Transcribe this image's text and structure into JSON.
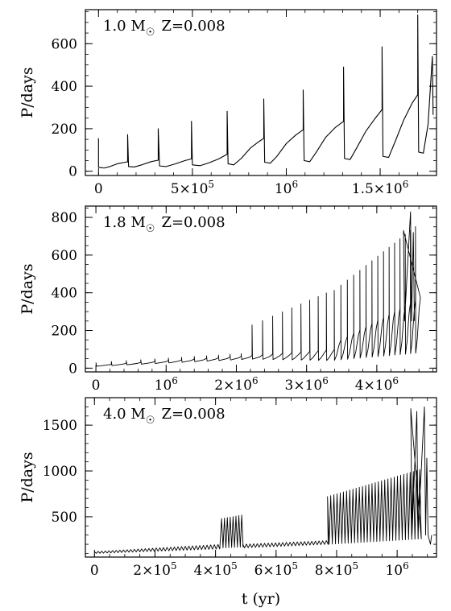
{
  "chart_data": [
    {
      "type": "line",
      "label_prefix": "1.0 M",
      "label_suffix": "Z=0.008",
      "ylabel": "P/days",
      "xlim": [
        -70000,
        1800000
      ],
      "ylim": [
        -20,
        760
      ],
      "xtick_labels": [
        {
          "x": 0,
          "mant": "0",
          "exp": ""
        },
        {
          "x": 500000,
          "mant": "5×10",
          "exp": "5"
        },
        {
          "x": 1000000,
          "mant": "10",
          "exp": "6"
        },
        {
          "x": 1500000,
          "mant": "1.5×10",
          "exp": "6"
        }
      ],
      "xminor": 100000,
      "ytick_labels": [
        {
          "y": 0,
          "text": "0"
        },
        {
          "y": 200,
          "text": "200"
        },
        {
          "y": 400,
          "text": "400"
        },
        {
          "y": 600,
          "text": "600"
        }
      ],
      "yminor": 50,
      "series": [
        {
          "values": [
            [
              0,
              155
            ],
            [
              0,
              18
            ],
            [
              30000,
              15
            ],
            [
              60000,
              22
            ],
            [
              100000,
              35
            ],
            [
              140000,
              42
            ],
            [
              155000,
              44
            ],
            [
              155000,
              172
            ],
            [
              160000,
              22
            ],
            [
              190000,
              20
            ],
            [
              230000,
              30
            ],
            [
              280000,
              45
            ],
            [
              318000,
              52
            ],
            [
              318000,
              200
            ],
            [
              325000,
              25
            ],
            [
              360000,
              22
            ],
            [
              410000,
              35
            ],
            [
              460000,
              50
            ],
            [
              495000,
              58
            ],
            [
              495000,
              235
            ],
            [
              500000,
              30
            ],
            [
              540000,
              26
            ],
            [
              590000,
              40
            ],
            [
              640000,
              58
            ],
            [
              685000,
              80
            ],
            [
              685000,
              282
            ],
            [
              690000,
              35
            ],
            [
              720000,
              30
            ],
            [
              760000,
              60
            ],
            [
              810000,
              110
            ],
            [
              855000,
              140
            ],
            [
              880000,
              155
            ],
            [
              880000,
              340
            ],
            [
              885000,
              42
            ],
            [
              915000,
              38
            ],
            [
              950000,
              70
            ],
            [
              1000000,
              130
            ],
            [
              1050000,
              170
            ],
            [
              1090000,
              195
            ],
            [
              1090000,
              382
            ],
            [
              1095000,
              50
            ],
            [
              1125000,
              45
            ],
            [
              1160000,
              90
            ],
            [
              1210000,
              160
            ],
            [
              1260000,
              205
            ],
            [
              1305000,
              235
            ],
            [
              1305000,
              490
            ],
            [
              1310000,
              60
            ],
            [
              1340000,
              55
            ],
            [
              1375000,
              110
            ],
            [
              1425000,
              190
            ],
            [
              1470000,
              245
            ],
            [
              1510000,
              290
            ],
            [
              1510000,
              585
            ],
            [
              1515000,
              70
            ],
            [
              1545000,
              65
            ],
            [
              1580000,
              140
            ],
            [
              1625000,
              240
            ],
            [
              1670000,
              320
            ],
            [
              1700000,
              360
            ],
            [
              1700000,
              735
            ],
            [
              1705000,
              90
            ],
            [
              1730000,
              85
            ],
            [
              1755000,
              220
            ],
            [
              1770000,
              430
            ],
            [
              1778000,
              540
            ],
            [
              1782000,
              265
            ]
          ]
        }
      ]
    },
    {
      "type": "line",
      "label_prefix": "1.8 M",
      "label_suffix": "Z=0.008",
      "ylabel": "P/days",
      "xlim": [
        -150000,
        4850000
      ],
      "ylim": [
        -20,
        860
      ],
      "xtick_labels": [
        {
          "x": 0,
          "mant": "0",
          "exp": ""
        },
        {
          "x": 1000000,
          "mant": "10",
          "exp": "6"
        },
        {
          "x": 2000000,
          "mant": "2×10",
          "exp": "6"
        },
        {
          "x": 3000000,
          "mant": "3×10",
          "exp": "6"
        },
        {
          "x": 4000000,
          "mant": "4×10",
          "exp": "6"
        }
      ],
      "xminor": 200000,
      "ytick_labels": [
        {
          "y": 0,
          "text": "0"
        },
        {
          "y": 200,
          "text": "200"
        },
        {
          "y": 400,
          "text": "400"
        },
        {
          "y": 600,
          "text": "600"
        },
        {
          "y": 800,
          "text": "800"
        }
      ],
      "yminor": 50,
      "pulse_model": {
        "start": 0,
        "tip_segments": [
          {
            "x0": 0,
            "x1": 2200000,
            "period0": 220000,
            "period1": 150000,
            "amp0": 10,
            "amp1": 22,
            "peak0": 20,
            "peak1": 70
          },
          {
            "x0": 2200000,
            "x1": 3350000,
            "period0": 150000,
            "period1": 110000,
            "amp0": 22,
            "amp1": 60,
            "peak0": 70,
            "peak1": 100,
            "spike0": 225,
            "spike1": 410
          },
          {
            "x0": 3350000,
            "x1": 4580000,
            "period0": 95000,
            "period1": 70000,
            "amp0": 100,
            "amp1": 300,
            "peak0": 140,
            "peak1": 380,
            "spike0": 400,
            "spike1": 760
          }
        ],
        "final_spikes": [
          [
            4380000,
            730
          ],
          [
            4480000,
            830
          ],
          [
            4520000,
            720
          ]
        ]
      },
      "series": [
        {
          "values": []
        }
      ]
    },
    {
      "type": "line",
      "label_prefix": "4.0 M",
      "label_suffix": "Z=0.008",
      "ylabel": "P/days",
      "xlabel": "t (yr)",
      "xlim": [
        -30000,
        1130000
      ],
      "ylim": [
        60,
        1800
      ],
      "xtick_labels": [
        {
          "x": 0,
          "mant": "0",
          "exp": ""
        },
        {
          "x": 200000,
          "mant": "2×10",
          "exp": "5"
        },
        {
          "x": 400000,
          "mant": "4×10",
          "exp": "5"
        },
        {
          "x": 600000,
          "mant": "6×10",
          "exp": "5"
        },
        {
          "x": 800000,
          "mant": "8×10",
          "exp": "5"
        },
        {
          "x": 1000000,
          "mant": "10",
          "exp": "6"
        }
      ],
      "xminor": 50000,
      "ytick_labels": [
        {
          "y": 500,
          "text": "500"
        },
        {
          "y": 1000,
          "text": "1000"
        },
        {
          "y": 1500,
          "text": "1500"
        }
      ],
      "yminor": 100,
      "pulse_model": {
        "segments": [
          {
            "x0": 0,
            "x1": 420000,
            "period": 12000,
            "low0": 100,
            "low1": 150,
            "high0": 120,
            "high1": 200
          },
          {
            "x0": 420000,
            "x1": 490000,
            "period": 9500,
            "low0": 160,
            "low1": 170,
            "high0": 480,
            "high1": 520
          },
          {
            "x0": 490000,
            "x1": 770000,
            "period": 12000,
            "low0": 160,
            "low1": 200,
            "high0": 200,
            "high1": 240
          },
          {
            "x0": 770000,
            "x1": 1080000,
            "period": 10500,
            "low0": 200,
            "low1": 260,
            "high0": 720,
            "high1": 1020
          }
        ],
        "final_spikes": [
          [
            1045000,
            1680
          ],
          [
            1065000,
            1650
          ],
          [
            1090000,
            1700
          ],
          [
            1098000,
            1140
          ],
          [
            1110000,
            200
          ]
        ]
      },
      "series": [
        {
          "values": []
        }
      ]
    }
  ]
}
